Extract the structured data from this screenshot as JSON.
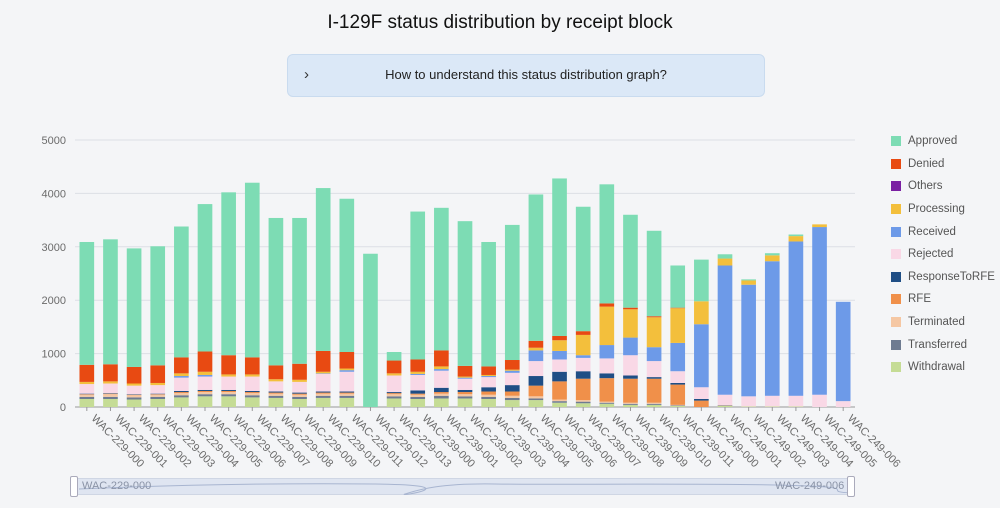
{
  "page": {
    "title": "I-129F status distribution by receipt block",
    "accordion_label": "How to understand this status distribution graph?",
    "accordion_icon": "chevron-right-icon",
    "zoom_start_label": "WAC-229-000",
    "zoom_end_label": "WAC-249-006"
  },
  "chart_data": {
    "type": "bar",
    "stacked": true,
    "title": "I-129F status distribution by receipt block",
    "ylim": [
      0,
      5000
    ],
    "yticks": [
      0,
      1000,
      2000,
      3000,
      4000,
      5000
    ],
    "grid": true,
    "legend_position": "right",
    "categories": [
      "WAC-229-000",
      "WAC-229-001",
      "WAC-229-002",
      "WAC-229-003",
      "WAC-229-004",
      "WAC-229-005",
      "WAC-229-006",
      "WAC-229-007",
      "WAC-229-008",
      "WAC-229-009",
      "WAC-229-010",
      "WAC-229-011",
      "WAC-229-012",
      "WAC-229-013",
      "WAC-239-000",
      "WAC-239-001",
      "WAC-239-002",
      "WAC-239-003",
      "WAC-239-004",
      "WAC-239-005",
      "WAC-239-006",
      "WAC-239-007",
      "WAC-239-008",
      "WAC-239-009",
      "WAC-239-010",
      "WAC-239-011",
      "WAC-249-000",
      "WAC-249-001",
      "WAC-249-002",
      "WAC-249-003",
      "WAC-249-004",
      "WAC-249-005",
      "WAC-249-006"
    ],
    "series": [
      {
        "name": "Withdrawal",
        "color": "#c5dc95",
        "values": [
          150,
          150,
          140,
          150,
          180,
          200,
          200,
          180,
          170,
          150,
          170,
          170,
          0,
          160,
          150,
          160,
          160,
          150,
          130,
          130,
          80,
          70,
          60,
          40,
          40,
          20,
          0,
          20,
          10,
          10,
          10,
          0,
          0
        ]
      },
      {
        "name": "Transferred",
        "color": "#6e7b91",
        "values": [
          40,
          40,
          40,
          40,
          40,
          40,
          40,
          40,
          40,
          40,
          40,
          40,
          0,
          40,
          40,
          50,
          40,
          40,
          40,
          30,
          30,
          30,
          20,
          20,
          20,
          10,
          0,
          10,
          0,
          0,
          0,
          0,
          0
        ]
      },
      {
        "name": "Terminated",
        "color": "#f5c7a3",
        "values": [
          40,
          50,
          40,
          40,
          40,
          40,
          40,
          40,
          40,
          40,
          40,
          40,
          0,
          40,
          40,
          40,
          40,
          40,
          40,
          40,
          30,
          30,
          20,
          20,
          20,
          10,
          0,
          10,
          0,
          0,
          0,
          0,
          0
        ]
      },
      {
        "name": "RFE",
        "color": "#f0904a",
        "values": [
          10,
          10,
          10,
          10,
          20,
          20,
          20,
          20,
          20,
          20,
          20,
          20,
          0,
          20,
          20,
          30,
          40,
          60,
          80,
          200,
          340,
          400,
          440,
          450,
          450,
          380,
          120,
          0,
          0,
          0,
          0,
          0,
          0
        ]
      },
      {
        "name": "ResponseToRFE",
        "color": "#1f4e85",
        "values": [
          10,
          10,
          10,
          10,
          20,
          20,
          20,
          20,
          20,
          20,
          20,
          20,
          0,
          20,
          60,
          80,
          40,
          80,
          120,
          180,
          180,
          140,
          90,
          60,
          30,
          30,
          30,
          0,
          0,
          0,
          0,
          0,
          0
        ]
      },
      {
        "name": "Rejected",
        "color": "#f9d8e6",
        "values": [
          180,
          180,
          160,
          160,
          250,
          250,
          250,
          270,
          190,
          200,
          330,
          370,
          0,
          310,
          290,
          320,
          210,
          190,
          230,
          280,
          230,
          250,
          280,
          380,
          300,
          220,
          220,
          190,
          190,
          200,
          200,
          230,
          110
        ]
      },
      {
        "name": "Received",
        "color": "#6d9ae8",
        "values": [
          0,
          0,
          0,
          0,
          30,
          30,
          0,
          0,
          0,
          0,
          10,
          30,
          0,
          0,
          20,
          30,
          20,
          20,
          40,
          200,
          160,
          50,
          250,
          330,
          260,
          530,
          1180,
          2420,
          2090,
          2520,
          2890,
          3140,
          1860
        ]
      },
      {
        "name": "Processing",
        "color": "#f3bf3c",
        "values": [
          40,
          40,
          40,
          40,
          50,
          60,
          40,
          40,
          40,
          40,
          30,
          30,
          0,
          40,
          40,
          50,
          20,
          20,
          20,
          50,
          200,
          380,
          720,
          530,
          560,
          650,
          430,
          130,
          80,
          110,
          100,
          50,
          0
        ]
      },
      {
        "name": "Others",
        "color": "#7a1fa2",
        "values": [
          0,
          0,
          0,
          0,
          0,
          0,
          0,
          0,
          0,
          0,
          0,
          0,
          0,
          0,
          0,
          0,
          0,
          0,
          0,
          0,
          0,
          0,
          0,
          0,
          0,
          0,
          0,
          0,
          0,
          0,
          0,
          0,
          0
        ]
      },
      {
        "name": "Denied",
        "color": "#e84a12",
        "values": [
          320,
          320,
          310,
          330,
          300,
          380,
          360,
          320,
          260,
          300,
          390,
          310,
          0,
          240,
          230,
          300,
          200,
          160,
          180,
          130,
          80,
          70,
          60,
          30,
          20,
          10,
          0,
          0,
          0,
          0,
          0,
          0,
          0
        ]
      },
      {
        "name": "Approved",
        "color": "#7ddcb4",
        "values": [
          2300,
          2340,
          2220,
          2230,
          2450,
          2760,
          3050,
          3270,
          2760,
          2730,
          3050,
          2870,
          2870,
          160,
          2770,
          2670,
          2710,
          2330,
          2530,
          2740,
          2950,
          2330,
          2230,
          1740,
          1600,
          790,
          780,
          80,
          20,
          40,
          30,
          0,
          0
        ]
      }
    ]
  },
  "legend_order": [
    "Approved",
    "Denied",
    "Others",
    "Processing",
    "Received",
    "Rejected",
    "ResponseToRFE",
    "RFE",
    "Terminated",
    "Transferred",
    "Withdrawal"
  ]
}
